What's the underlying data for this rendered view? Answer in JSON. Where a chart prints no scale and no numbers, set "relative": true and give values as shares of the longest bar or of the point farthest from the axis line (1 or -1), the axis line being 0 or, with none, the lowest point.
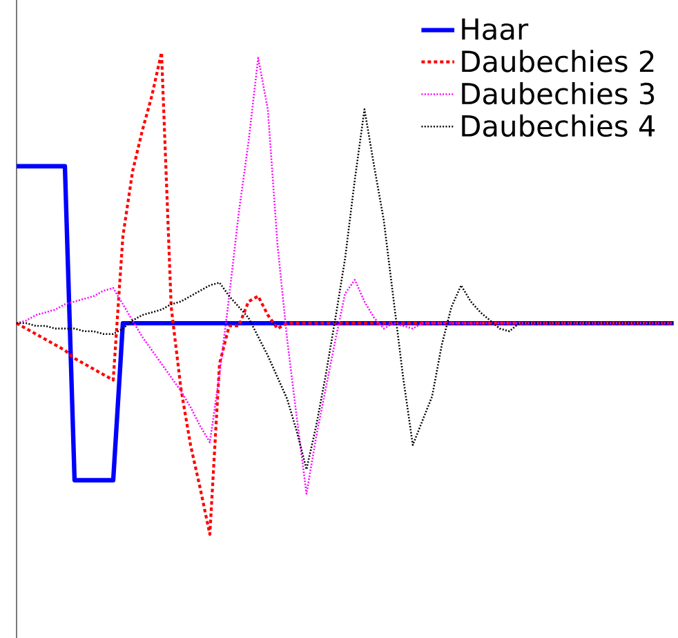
{
  "chart_data": {
    "type": "line",
    "relative": true,
    "legend": "top right",
    "marker": "none",
    "categories": [
      null,
      null,
      null,
      null,
      null,
      null,
      null,
      null,
      null,
      null,
      null,
      null,
      null,
      null,
      null,
      null,
      null,
      null,
      null,
      null,
      null,
      null,
      null,
      null,
      null,
      null,
      null,
      null,
      null,
      null,
      null,
      null,
      null,
      null,
      null,
      null,
      null,
      null,
      null,
      null,
      null,
      null,
      null,
      null,
      null,
      null,
      null,
      null,
      null,
      null,
      null,
      null,
      null,
      null,
      null,
      null,
      null,
      null,
      null,
      null,
      null,
      null,
      null,
      null,
      null,
      null,
      null,
      null,
      null
    ],
    "series": [
      {
        "name": "Haar",
        "color": "#0000ff",
        "line_style": "solid",
        "values": [
          0.58,
          0.58,
          0.58,
          0.58,
          0.58,
          0.58,
          -0.58,
          -0.58,
          -0.58,
          -0.58,
          -0.58,
          0,
          0,
          0,
          0,
          0,
          0,
          0,
          0,
          0,
          0,
          0,
          0,
          0,
          0,
          0,
          0,
          0,
          0,
          0,
          0,
          0,
          0,
          0,
          0,
          0,
          0,
          0,
          0,
          0,
          0,
          0,
          0,
          0,
          0,
          0,
          0,
          0,
          0,
          0,
          0,
          0,
          0,
          0,
          0,
          0,
          0,
          0,
          0,
          0,
          0,
          0,
          0,
          0,
          0,
          0,
          0,
          0,
          0
        ]
      },
      {
        "name": "Daubechies 2",
        "color": "#ff0000",
        "line_style": "dashed",
        "values": [
          0,
          -0.02,
          -0.04,
          -0.06,
          -0.08,
          -0.1,
          -0.13,
          -0.15,
          -0.17,
          -0.19,
          -0.21,
          0.32,
          0.56,
          0.71,
          0.84,
          1.0,
          0.06,
          -0.24,
          -0.45,
          -0.61,
          -0.78,
          -0.15,
          -0.01,
          -0.01,
          0.08,
          0.1,
          0.03,
          -0.02,
          0,
          0,
          0,
          0,
          0,
          0,
          0,
          0,
          0,
          0,
          0,
          0,
          0,
          0,
          0,
          0,
          0,
          0,
          0,
          0,
          0,
          0,
          0,
          0,
          0,
          0,
          0,
          0,
          0,
          0,
          0,
          0,
          0,
          0,
          0,
          0,
          0,
          0,
          0,
          0,
          0
        ]
      },
      {
        "name": "Daubechies 3",
        "color": "#ff00ff",
        "line_style": "dotted",
        "values": [
          0,
          0.01,
          0.03,
          0.04,
          0.05,
          0.07,
          0.08,
          0.09,
          0.1,
          0.12,
          0.13,
          0.07,
          0.01,
          -0.05,
          -0.1,
          -0.15,
          -0.2,
          -0.25,
          -0.31,
          -0.38,
          -0.44,
          -0.19,
          0.1,
          0.41,
          0.67,
          0.98,
          0.79,
          0.29,
          -0.06,
          -0.35,
          -0.63,
          -0.42,
          -0.24,
          -0.06,
          0.11,
          0.16,
          0.08,
          0.02,
          -0.02,
          0,
          -0.01,
          -0.02,
          0,
          0,
          0,
          0,
          0,
          0,
          0,
          0,
          0,
          0,
          0,
          0,
          0,
          0,
          0,
          0,
          0,
          0,
          0,
          0,
          0,
          0,
          0,
          0,
          0,
          0,
          0
        ]
      },
      {
        "name": "Daubechies 4",
        "color": "#000000",
        "line_style": "dotted",
        "values": [
          0,
          0,
          -0.01,
          -0.01,
          -0.02,
          -0.02,
          -0.02,
          -0.03,
          -0.03,
          -0.04,
          -0.04,
          -0.02,
          0.01,
          0.03,
          0.04,
          0.05,
          0.07,
          0.08,
          0.1,
          0.12,
          0.14,
          0.15,
          0.1,
          0.06,
          0.02,
          -0.05,
          -0.12,
          -0.2,
          -0.28,
          -0.4,
          -0.54,
          -0.38,
          -0.19,
          0.02,
          0.24,
          0.53,
          0.79,
          0.58,
          0.38,
          0.09,
          -0.2,
          -0.45,
          -0.36,
          -0.27,
          -0.08,
          0.06,
          0.14,
          0.08,
          0.04,
          0.01,
          -0.02,
          -0.03,
          0,
          0,
          0,
          0,
          0,
          0,
          0,
          0,
          0,
          0,
          0,
          0,
          0,
          0,
          0,
          0,
          0
        ]
      }
    ]
  }
}
